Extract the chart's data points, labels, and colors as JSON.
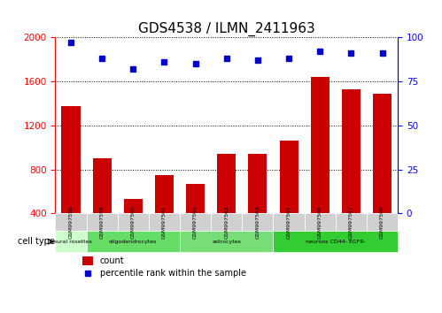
{
  "title": "GDS4538 / ILMN_2411963",
  "samples": [
    "GSM997558",
    "GSM997559",
    "GSM997560",
    "GSM997561",
    "GSM997562",
    "GSM997563",
    "GSM997564",
    "GSM997565",
    "GSM997566",
    "GSM997567",
    "GSM997568"
  ],
  "counts": [
    1380,
    900,
    530,
    750,
    670,
    940,
    940,
    1060,
    1640,
    1530,
    1490
  ],
  "percentiles": [
    97,
    88,
    82,
    86,
    85,
    88,
    87,
    88,
    92,
    91,
    91
  ],
  "ylim_left": [
    400,
    2000
  ],
  "ylim_right": [
    0,
    100
  ],
  "yticks_left": [
    400,
    800,
    1200,
    1600,
    2000
  ],
  "yticks_right": [
    0,
    25,
    50,
    75,
    100
  ],
  "bar_color": "#cc0000",
  "dot_color": "#0000cc",
  "grid_color": "#000000",
  "cell_types": [
    {
      "label": "neural rosettes",
      "start": 0,
      "end": 1,
      "color": "#ccffcc"
    },
    {
      "label": "oligodendrocytes",
      "start": 1,
      "end": 3,
      "color": "#66dd66"
    },
    {
      "label": "astrocytes",
      "start": 3,
      "end": 6,
      "color": "#66dd66"
    },
    {
      "label": "neurons CD44- EGFR-",
      "start": 6,
      "end": 10,
      "color": "#33cc33"
    }
  ],
  "cell_type_label": "cell type",
  "legend_count_label": "count",
  "legend_percentile_label": "percentile rank within the sample",
  "background_color": "#ffffff",
  "plot_bg_color": "#ffffff",
  "title_fontsize": 11,
  "tick_fontsize": 7.5
}
